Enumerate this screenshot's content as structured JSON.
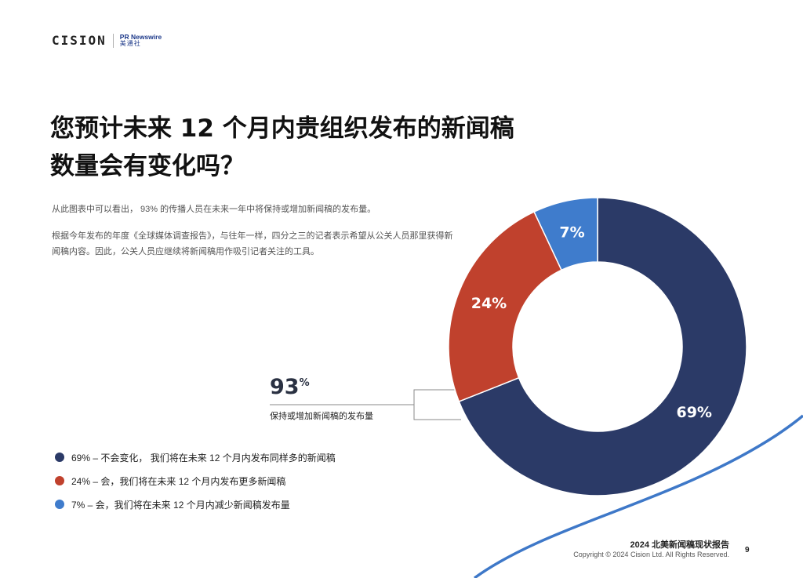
{
  "header": {
    "logo_cision": "CISION",
    "logo_pr_newswire": "PR Newswire",
    "logo_pr_cn": "美通社"
  },
  "title_line1": "您预计未来 12 个月内贵组织发布的新闻稿",
  "title_line2": "数量会有变化吗？",
  "paragraph1": "从此图表中可以看出， 93% 的传播人员在未来一年中将保持或增加新闻稿的发布量。",
  "paragraph2": "根据今年发布的年度《全球媒体调查报告》，与往年一样，四分之三的记者表示希望从公关人员那里获得新闻稿内容。因此，公关人员应继续将新闻稿用作吸引记者关注的工具。",
  "callout": {
    "value": "93",
    "unit": "%",
    "label": "保持或增加新闻稿的发布量"
  },
  "chart_data": {
    "type": "pie",
    "donut": true,
    "categories": [
      "69% – 不会变化， 我们将在未来 12 个月内发布同样多的新闻稿",
      "24% – 会，我们将在未来 12 个月内发布更多新闻稿",
      "7% – 会，我们将在未来 12 个月内减少新闻稿发布量"
    ],
    "values": [
      69,
      24,
      7
    ],
    "data_labels": [
      "69%",
      "24%",
      "7%"
    ],
    "colors": [
      "#2b3a67",
      "#c0412d",
      "#3f7ccc"
    ],
    "legend_position": "bottom-left"
  },
  "colors": {
    "accent_line": "#3e78c8",
    "callout_bracket": "#8a8a8a"
  },
  "footer": {
    "report_title": "2024 北美新闻稿现状报告",
    "copyright": "Copyright © 2024 Cision Ltd. All Rights Reserved.",
    "page_number": "9"
  }
}
